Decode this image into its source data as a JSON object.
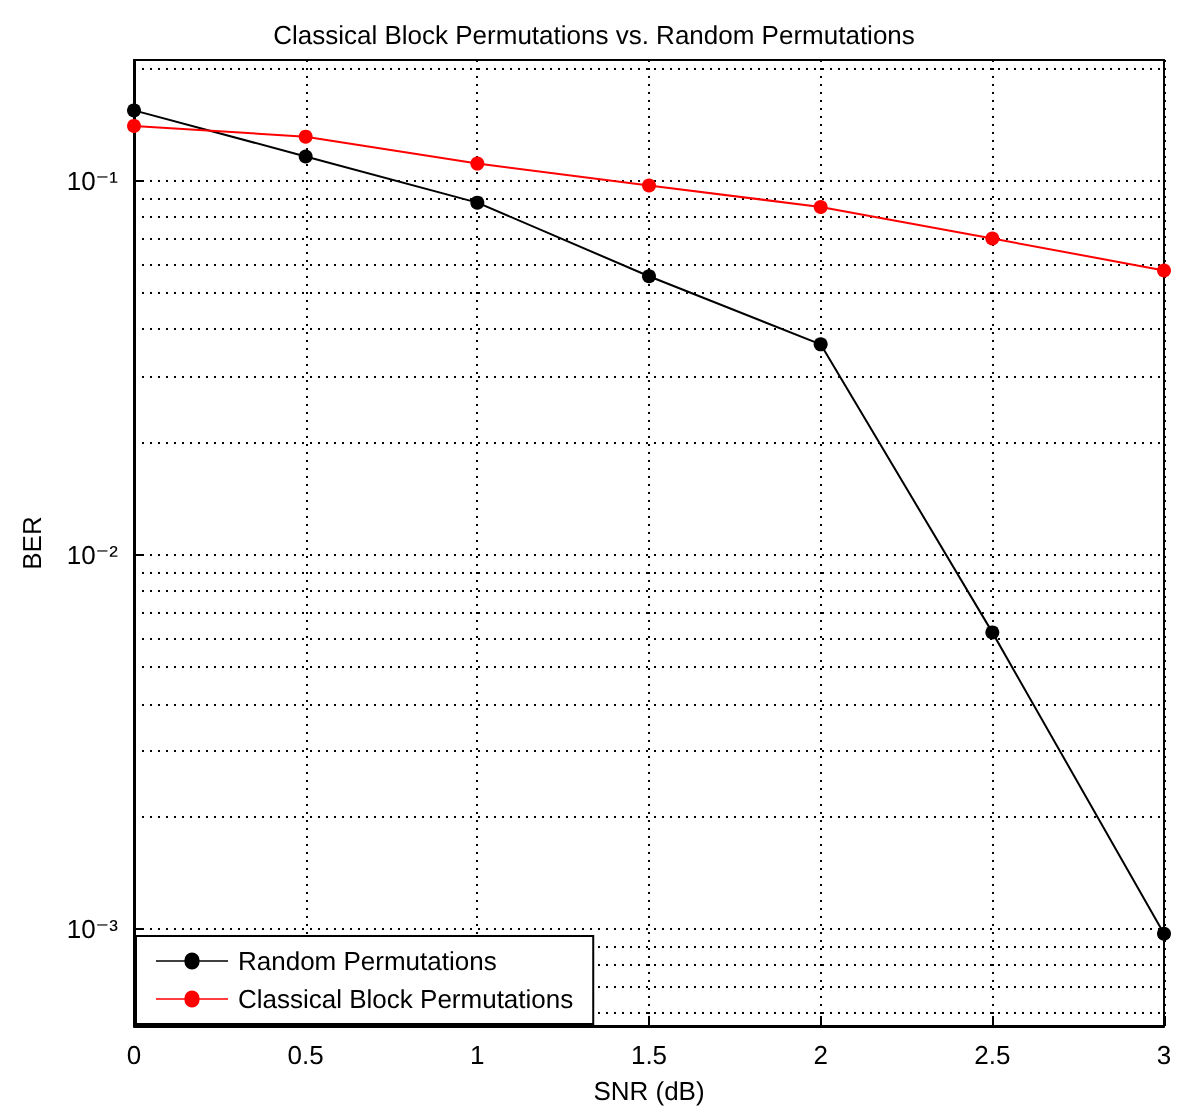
{
  "chart_data": {
    "type": "line",
    "title": "Classical Block Permutations vs. Random Permutations",
    "xlabel": "SNR (dB)",
    "ylabel": "BER",
    "x": [
      0,
      0.5,
      1,
      1.5,
      2,
      2.5,
      3
    ],
    "series": [
      {
        "name": "Random Permutations",
        "color": "#000000",
        "values": [
          0.154,
          0.116,
          0.0873,
          0.0555,
          0.0365,
          0.0062,
          0.00097
        ]
      },
      {
        "name": "Classical Block Permutations",
        "color": "#ff0000",
        "values": [
          0.14,
          0.131,
          0.111,
          0.097,
          0.085,
          0.07,
          0.0575
        ]
      }
    ],
    "xlim": [
      0,
      3
    ],
    "xticks": [
      0,
      0.5,
      1,
      1.5,
      2,
      2.5,
      3
    ],
    "ylim": [
      0.00055,
      0.21
    ],
    "yticks": [
      {
        "value": 0.001,
        "label": "10⁻³"
      },
      {
        "value": 0.01,
        "label": "10⁻²"
      },
      {
        "value": 0.1,
        "label": "10⁻¹"
      }
    ],
    "log": "y",
    "grid": true,
    "legend": "bottom left",
    "marker": "circle",
    "line_style": "solid"
  }
}
